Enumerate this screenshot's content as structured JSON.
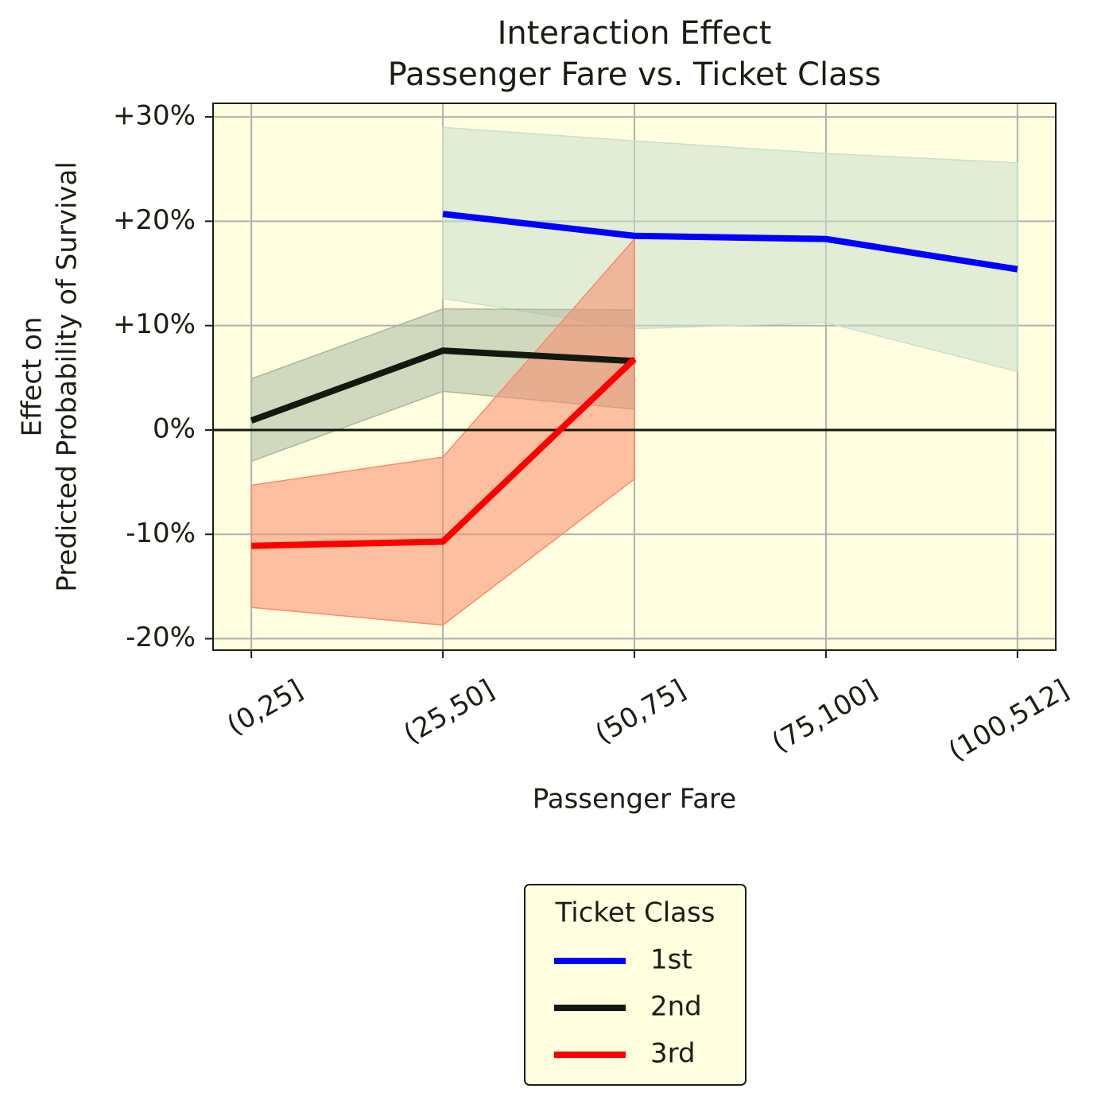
{
  "chart_data": {
    "type": "line",
    "title": "Interaction Effect",
    "subtitle": "Passenger Fare vs. Ticket Class",
    "xlabel": "Passenger Fare",
    "ylabel": [
      "Effect on",
      "Predicted Probability of Survival"
    ],
    "categories": [
      "(0,25]",
      "(25,50]",
      "(50,75]",
      "(75,100]",
      "(100,512]"
    ],
    "ylim": [
      -21.1,
      31.3
    ],
    "yticks": [
      {
        "value": -20,
        "label": "-20%"
      },
      {
        "value": -10,
        "label": "-10%"
      },
      {
        "value": 0,
        "label": "0%"
      },
      {
        "value": 10,
        "label": "+10%"
      },
      {
        "value": 20,
        "label": "+20%"
      },
      {
        "value": 30,
        "label": "+30%"
      }
    ],
    "grid": true,
    "background": "#ffffe0",
    "legend_title": "Ticket Class",
    "legend_position": "below",
    "series": [
      {
        "name": "1st",
        "color": "#0000ff",
        "band_color": "#c9e0cc",
        "values": [
          null,
          20.7,
          18.6,
          18.3,
          15.4
        ],
        "upper": [
          null,
          29.0,
          27.7,
          26.5,
          25.6
        ],
        "lower": [
          null,
          12.6,
          9.7,
          10.3,
          5.6
        ]
      },
      {
        "name": "2nd",
        "color": "#111a0e",
        "band_color": "#a9b8a0",
        "values": [
          0.9,
          7.6,
          6.6,
          null,
          null
        ],
        "upper": [
          4.9,
          11.6,
          11.5,
          null,
          null
        ],
        "lower": [
          -3.0,
          3.7,
          2.0,
          null,
          null
        ]
      },
      {
        "name": "3rd",
        "color": "#ff0000",
        "band_color": "#fa8a6a",
        "values": [
          -11.1,
          -10.7,
          6.8,
          null,
          null
        ],
        "upper": [
          -5.3,
          -2.6,
          18.3,
          null,
          null
        ],
        "lower": [
          -17.0,
          -18.7,
          -4.7,
          null,
          null
        ]
      }
    ]
  }
}
